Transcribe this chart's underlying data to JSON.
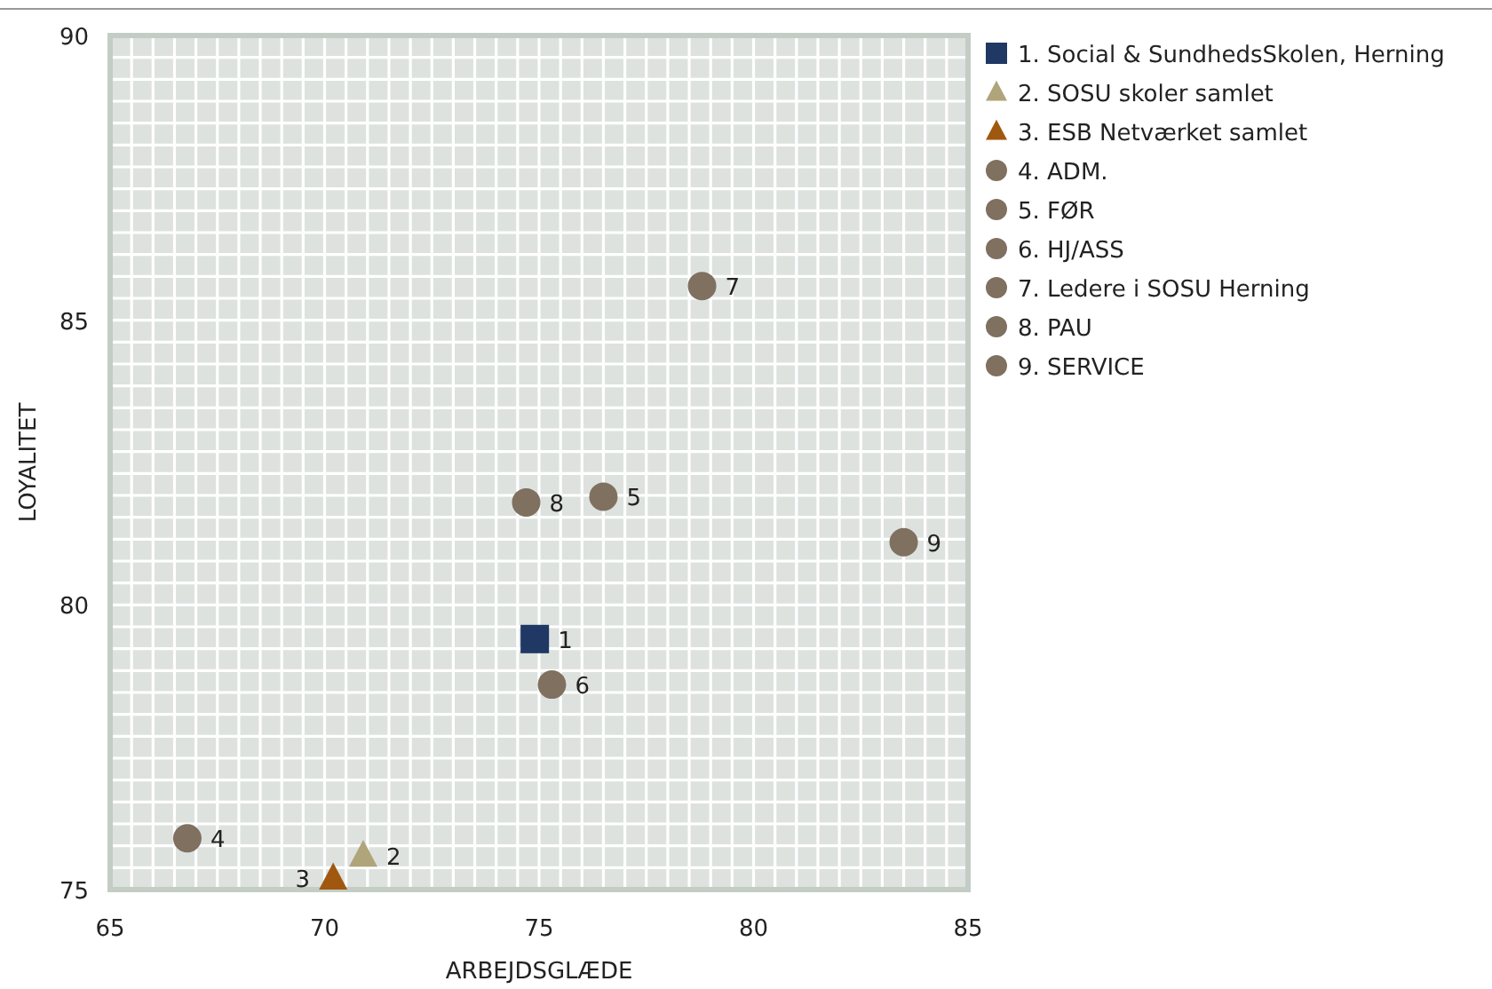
{
  "chart_data": {
    "type": "scatter",
    "xlabel": "ARBEJDSGLÆDE",
    "ylabel": "LOYALITET",
    "xlim": [
      65,
      85
    ],
    "ylim": [
      75,
      90
    ],
    "xticks": [
      65,
      70,
      75,
      80,
      85
    ],
    "yticks": [
      75,
      80,
      85,
      90
    ],
    "grid": true,
    "legend": "top right",
    "series": [
      {
        "name": "1. Social & SundhedsSkolen, Herning",
        "color": "#1f3864",
        "marker": "square",
        "x": [
          74.9
        ],
        "values": [
          79.4
        ]
      },
      {
        "name": "2. SOSU skoler samlet",
        "color": "#b0a47a",
        "marker": "triangle",
        "x": [
          70.9
        ],
        "values": [
          75.6
        ]
      },
      {
        "name": "3. ESB Netværket samlet",
        "color": "#a0580f",
        "marker": "triangle",
        "x": [
          70.2
        ],
        "values": [
          75.2
        ]
      },
      {
        "name": "4. ADM.",
        "color": "#7f7060",
        "marker": "circle",
        "x": [
          66.8
        ],
        "values": [
          75.9
        ]
      },
      {
        "name": "5. FØR",
        "color": "#7f7060",
        "marker": "circle",
        "x": [
          76.5
        ],
        "values": [
          81.9
        ]
      },
      {
        "name": "6. HJ/ASS",
        "color": "#7f7060",
        "marker": "circle",
        "x": [
          75.3
        ],
        "values": [
          78.6
        ]
      },
      {
        "name": "7. Ledere i SOSU Herning",
        "color": "#7f7060",
        "marker": "circle",
        "x": [
          78.8
        ],
        "values": [
          85.6
        ]
      },
      {
        "name": "8. PAU",
        "color": "#7f7060",
        "marker": "circle",
        "x": [
          74.7
        ],
        "values": [
          81.8
        ]
      },
      {
        "name": "9. SERVICE",
        "color": "#7f7060",
        "marker": "circle",
        "x": [
          83.5
        ],
        "values": [
          81.1
        ]
      }
    ],
    "annotations": [
      {
        "text": "1",
        "x": 74.9,
        "y": 79.4
      },
      {
        "text": "2",
        "x": 70.9,
        "y": 75.6
      },
      {
        "text": "3",
        "x": 70.2,
        "y": 75.2
      },
      {
        "text": "4",
        "x": 66.8,
        "y": 75.9
      },
      {
        "text": "5",
        "x": 76.5,
        "y": 81.9
      },
      {
        "text": "6",
        "x": 75.3,
        "y": 78.6
      },
      {
        "text": "7",
        "x": 78.8,
        "y": 85.6
      },
      {
        "text": "8",
        "x": 74.7,
        "y": 81.8
      },
      {
        "text": "9",
        "x": 83.5,
        "y": 81.1
      }
    ]
  }
}
